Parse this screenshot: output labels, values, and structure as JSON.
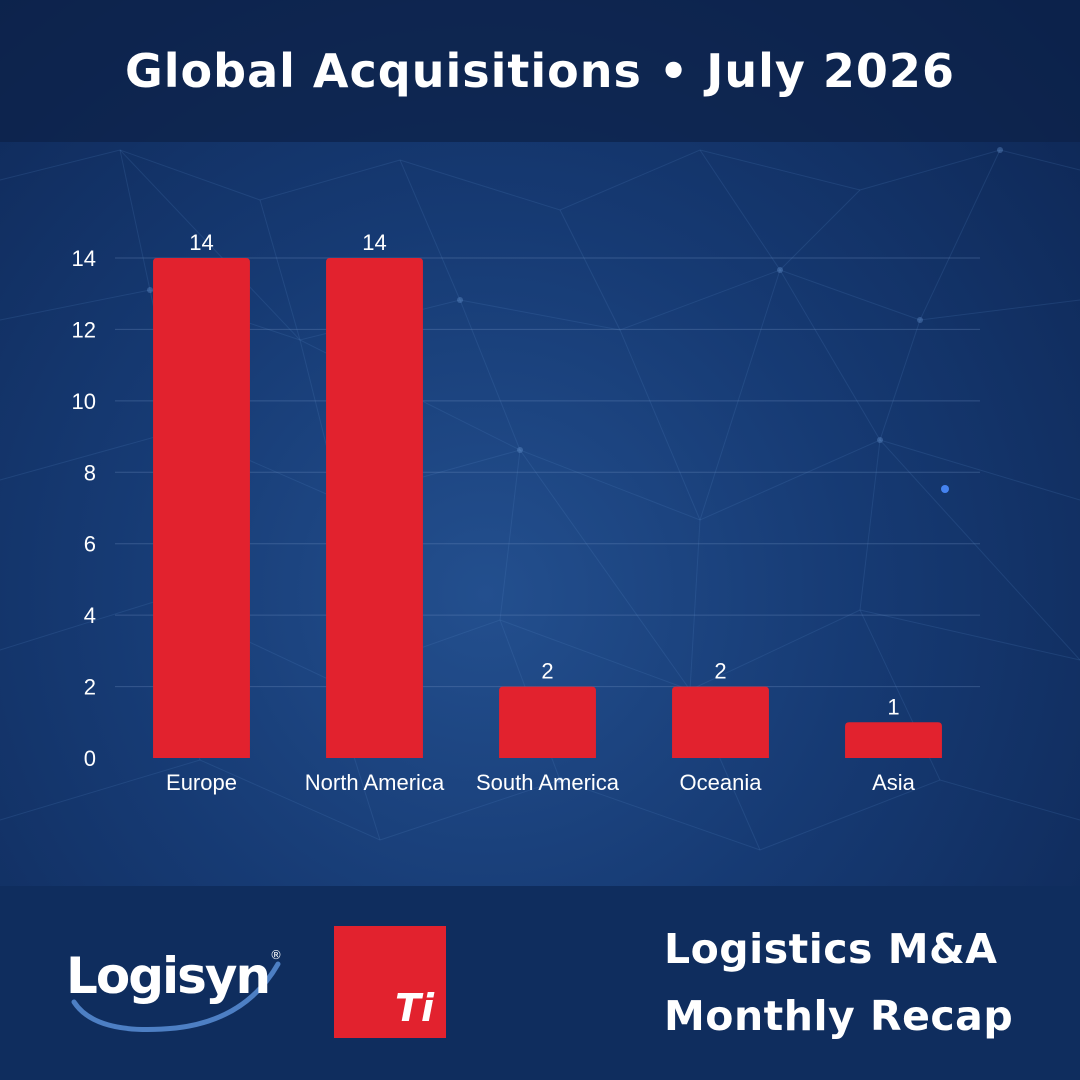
{
  "header": {
    "title": "Global Acquisitions • July 2026"
  },
  "chart_data": {
    "type": "bar",
    "categories": [
      "Europe",
      "North America",
      "South America",
      "Oceania",
      "Asia"
    ],
    "values": [
      14,
      14,
      2,
      2,
      1
    ],
    "data_labels": [
      "14",
      "14",
      "2",
      "2",
      "1"
    ],
    "ylim": [
      0,
      14
    ],
    "yticks": [
      0,
      2,
      4,
      6,
      8,
      10,
      12,
      14
    ],
    "grid": true,
    "bar_color": "#e2222e",
    "title": "",
    "xlabel": "",
    "ylabel": ""
  },
  "footer": {
    "logo_text": "Logisyn",
    "logo_registered": "®",
    "ti_logo_text": "Ti",
    "title_line1": "Logistics M&A",
    "title_line2": "Monthly Recap"
  },
  "colors": {
    "background": "#163a73",
    "header_band": "#0c2148",
    "footer_band": "#0f2d5e",
    "accent_red": "#e2222e",
    "text": "#ffffff"
  }
}
